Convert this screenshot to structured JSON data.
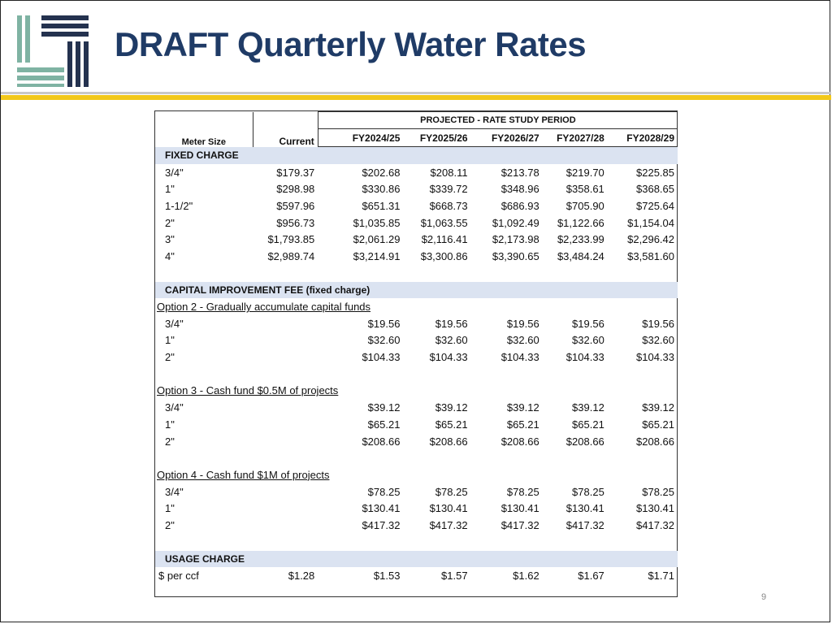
{
  "title": "DRAFT Quarterly Water Rates",
  "page_number": "9",
  "colors": {
    "title": "#1f3b66",
    "accent_yellow": "#f2c81a",
    "logo_teal": "#7fb3a3",
    "logo_navy": "#24324f",
    "section_fill": "#dbe3f1"
  },
  "table": {
    "projected_header": "PROJECTED - RATE STUDY PERIOD",
    "col_meter": "Meter Size",
    "col_current": "Current",
    "years": [
      "FY2024/25",
      "FY2025/26",
      "FY2026/27",
      "FY2027/28",
      "FY2028/29"
    ],
    "fixed": {
      "label": "FIXED CHARGE",
      "rows": [
        {
          "size": "3/4\"",
          "current": "$179.37",
          "vals": [
            "$202.68",
            "$208.11",
            "$213.78",
            "$219.70",
            "$225.85"
          ]
        },
        {
          "size": "1\"",
          "current": "$298.98",
          "vals": [
            "$330.86",
            "$339.72",
            "$348.96",
            "$358.61",
            "$368.65"
          ]
        },
        {
          "size": "1-1/2\"",
          "current": "$597.96",
          "vals": [
            "$651.31",
            "$668.73",
            "$686.93",
            "$705.90",
            "$725.64"
          ]
        },
        {
          "size": "2\"",
          "current": "$956.73",
          "vals": [
            "$1,035.85",
            "$1,063.55",
            "$1,092.49",
            "$1,122.66",
            "$1,154.04"
          ]
        },
        {
          "size": "3\"",
          "current": "$1,793.85",
          "vals": [
            "$2,061.29",
            "$2,116.41",
            "$2,173.98",
            "$2,233.99",
            "$2,296.42"
          ]
        },
        {
          "size": "4\"",
          "current": "$2,989.74",
          "vals": [
            "$3,214.91",
            "$3,300.86",
            "$3,390.65",
            "$3,484.24",
            "$3,581.60"
          ]
        }
      ]
    },
    "cap": {
      "label": "CAPITAL IMPROVEMENT FEE (fixed charge)",
      "options": [
        {
          "label": "Option 2 - Gradually accumulate capital funds",
          "rows": [
            {
              "size": "3/4\"",
              "vals": [
                "$19.56",
                "$19.56",
                "$19.56",
                "$19.56",
                "$19.56"
              ]
            },
            {
              "size": "1\"",
              "vals": [
                "$32.60",
                "$32.60",
                "$32.60",
                "$32.60",
                "$32.60"
              ]
            },
            {
              "size": "2\"",
              "vals": [
                "$104.33",
                "$104.33",
                "$104.33",
                "$104.33",
                "$104.33"
              ]
            }
          ]
        },
        {
          "label": "Option 3 - Cash fund $0.5M of projects",
          "rows": [
            {
              "size": "3/4\"",
              "vals": [
                "$39.12",
                "$39.12",
                "$39.12",
                "$39.12",
                "$39.12"
              ]
            },
            {
              "size": "1\"",
              "vals": [
                "$65.21",
                "$65.21",
                "$65.21",
                "$65.21",
                "$65.21"
              ]
            },
            {
              "size": "2\"",
              "vals": [
                "$208.66",
                "$208.66",
                "$208.66",
                "$208.66",
                "$208.66"
              ]
            }
          ]
        },
        {
          "label": "Option 4 - Cash fund $1M of projects",
          "rows": [
            {
              "size": "3/4\"",
              "vals": [
                "$78.25",
                "$78.25",
                "$78.25",
                "$78.25",
                "$78.25"
              ]
            },
            {
              "size": "1\"",
              "vals": [
                "$130.41",
                "$130.41",
                "$130.41",
                "$130.41",
                "$130.41"
              ]
            },
            {
              "size": "2\"",
              "vals": [
                "$417.32",
                "$417.32",
                "$417.32",
                "$417.32",
                "$417.32"
              ]
            }
          ]
        }
      ]
    },
    "usage": {
      "label": "USAGE CHARGE",
      "row": {
        "size": "$ per ccf",
        "current": "$1.28",
        "vals": [
          "$1.53",
          "$1.57",
          "$1.62",
          "$1.67",
          "$1.71"
        ]
      }
    }
  }
}
